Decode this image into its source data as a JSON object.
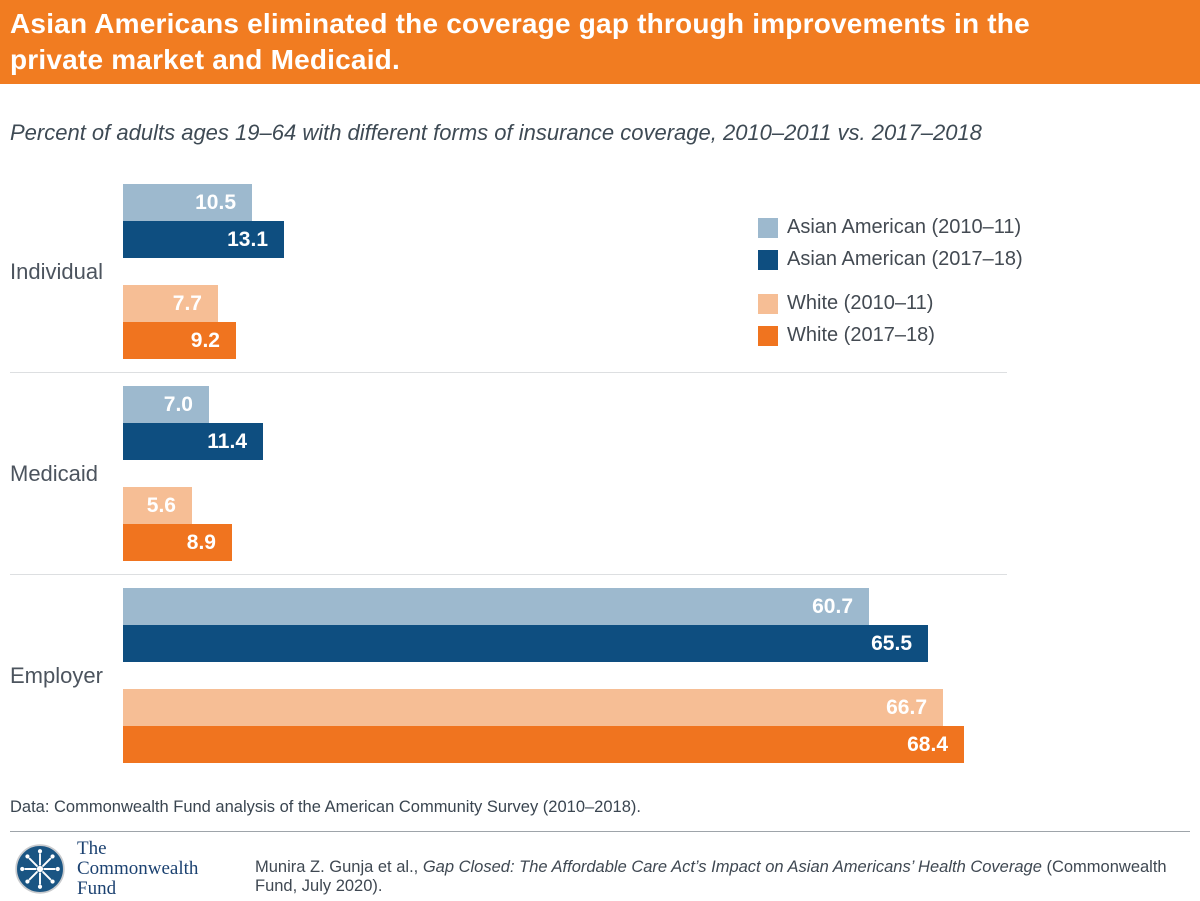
{
  "header": {
    "title": "Asian Americans eliminated the coverage gap through improvements in the private market and Medicaid.",
    "background_color": "#F17C21"
  },
  "subtitle": "Percent of adults ages 19–64 with different forms of insurance coverage, 2010–2011 vs. 2017–2018",
  "chart_data": {
    "type": "bar",
    "orientation": "horizontal",
    "title": "Asian Americans eliminated the coverage gap through improvements in the private market and Medicaid.",
    "subtitle": "Percent of adults ages 19–64 with different forms of insurance coverage, 2010–2011 vs. 2017–2018",
    "categories": [
      "Individual",
      "Medicaid",
      "Employer"
    ],
    "series": [
      {
        "name": "Asian American (2010–11)",
        "color": "#9DB9CE",
        "values": [
          10.5,
          7.0,
          60.7
        ]
      },
      {
        "name": "Asian American (2017–18)",
        "color": "#0E4E80",
        "values": [
          13.1,
          11.4,
          65.5
        ]
      },
      {
        "name": "White (2010–11)",
        "color": "#F6BE95",
        "values": [
          7.7,
          5.6,
          66.7
        ]
      },
      {
        "name": "White (2017–18)",
        "color": "#F0741F",
        "values": [
          9.2,
          8.9,
          68.4
        ]
      }
    ],
    "xlim": [
      0,
      68.4
    ],
    "grid": false,
    "legend_position": "right",
    "value_labels": "inside-end, white, one decimal"
  },
  "footer": {
    "data_note": "Data: Commonwealth Fund analysis of the American Community Survey (2010–2018).",
    "citation_prefix": "Munira Z. Gunja et al., ",
    "citation_title": "Gap Closed: The Affordable Care Act’s Impact on Asian Americans’ Health Coverage",
    "citation_suffix": " (Commonwealth Fund, July 2020).",
    "logo_lines": [
      "The",
      "Commonwealth",
      "Fund"
    ]
  }
}
